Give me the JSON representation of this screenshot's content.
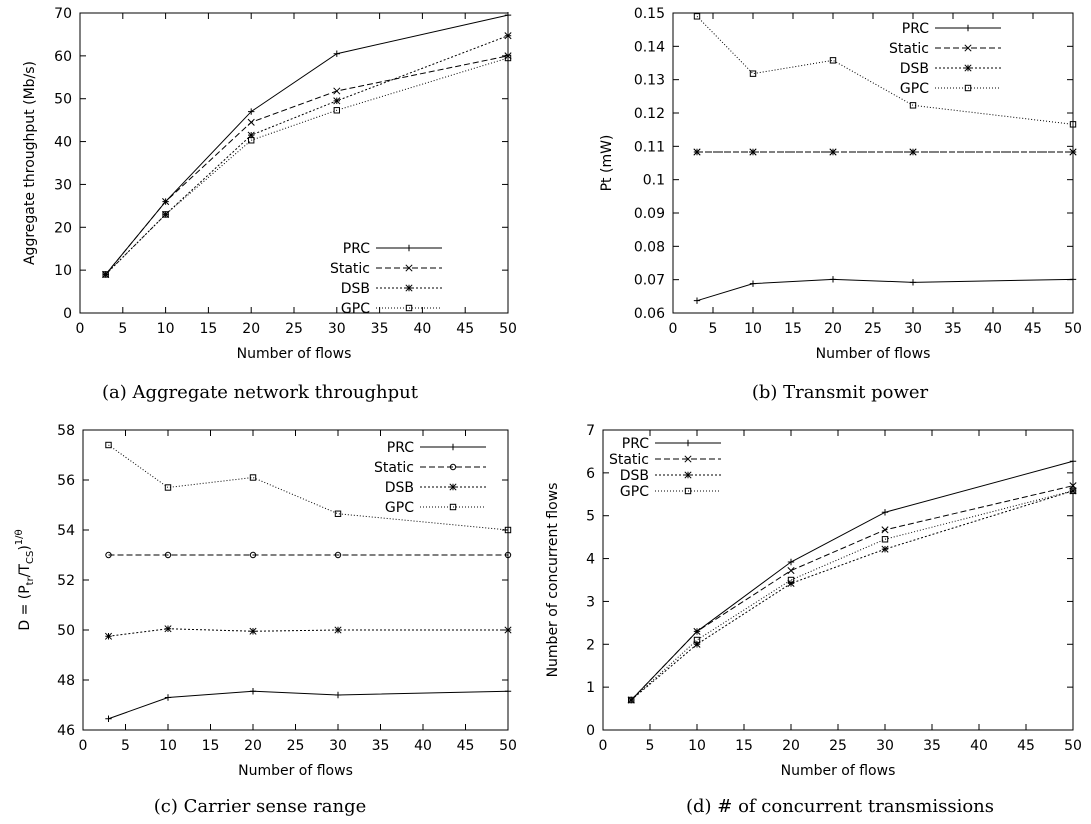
{
  "chart_data": [
    {
      "type": "line",
      "caption": "(a) Aggregate network throughput",
      "xlabel": "Number of flows",
      "ylabel": "Aggregate throughput (Mb/s)",
      "ylabel_parts": [],
      "xlim": [
        0,
        50
      ],
      "ylim": [
        0,
        70
      ],
      "xticks": [
        0,
        5,
        10,
        15,
        20,
        25,
        30,
        35,
        40,
        45,
        50
      ],
      "yticks": [
        0,
        10,
        20,
        30,
        40,
        50,
        60,
        70
      ],
      "ytick_labels": [
        "0",
        "10",
        "20",
        "30",
        "40",
        "50",
        "60",
        "70"
      ],
      "grid": false,
      "legend_position": "bottom-right",
      "x": [
        3,
        10,
        20,
        30,
        50
      ],
      "series": [
        {
          "name": "PRC",
          "values": [
            9,
            26,
            47,
            60.5,
            69.5
          ]
        },
        {
          "name": "Static",
          "values": [
            9,
            26,
            44.5,
            51.8,
            60
          ]
        },
        {
          "name": "DSB",
          "values": [
            9,
            23,
            41.5,
            49.5,
            64.7
          ]
        },
        {
          "name": "GPC",
          "values": [
            9,
            23,
            40.3,
            47.3,
            59.5
          ]
        }
      ]
    },
    {
      "type": "line",
      "caption": "(b) Transmit power",
      "xlabel": "Number of flows",
      "ylabel": "Pt (mW)",
      "ylabel_parts": [],
      "xlim": [
        0,
        50
      ],
      "ylim": [
        0.06,
        0.15
      ],
      "xticks": [
        0,
        5,
        10,
        15,
        20,
        25,
        30,
        35,
        40,
        45,
        50
      ],
      "yticks": [
        0.06,
        0.07,
        0.08,
        0.09,
        0.1,
        0.11,
        0.12,
        0.13,
        0.14,
        0.15
      ],
      "ytick_labels": [
        "0.06",
        "0.07",
        "0.08",
        "0.09",
        "0.1",
        "0.11",
        "0.12",
        "0.13",
        "0.14",
        "0.15"
      ],
      "grid": false,
      "legend_position": "top-right",
      "x": [
        3,
        10,
        20,
        30,
        50
      ],
      "series": [
        {
          "name": "PRC",
          "values": [
            0.0637,
            0.0688,
            0.0701,
            0.0692,
            0.0701
          ]
        },
        {
          "name": "Static",
          "values": [
            0.1083,
            0.1083,
            0.1083,
            0.1083,
            0.1083
          ]
        },
        {
          "name": "DSB",
          "values": [
            0.1083,
            0.1083,
            0.1083,
            0.1083,
            0.1083
          ]
        },
        {
          "name": "GPC",
          "values": [
            0.149,
            0.1318,
            0.1358,
            0.1223,
            0.1166
          ]
        }
      ]
    },
    {
      "type": "line",
      "caption": "(c) Carrier sense range",
      "xlabel": "Number of flows",
      "ylabel": "",
      "ylabel_parts": [
        "D = (P",
        "tr",
        "/T",
        "CS",
        ")",
        "1/θ"
      ],
      "xlim": [
        0,
        50
      ],
      "ylim": [
        46,
        58
      ],
      "xticks": [
        0,
        5,
        10,
        15,
        20,
        25,
        30,
        35,
        40,
        45,
        50
      ],
      "yticks": [
        46,
        48,
        50,
        52,
        54,
        56,
        58
      ],
      "ytick_labels": [
        "46",
        "48",
        "50",
        "52",
        "54",
        "56",
        "58"
      ],
      "grid": false,
      "legend_position": "top-right",
      "x": [
        3,
        10,
        20,
        30,
        50
      ],
      "series": [
        {
          "name": "PRC",
          "values": [
            46.45,
            47.3,
            47.55,
            47.4,
            47.55
          ]
        },
        {
          "name": "Static",
          "values": [
            53,
            53,
            53,
            53,
            53
          ]
        },
        {
          "name": "DSB",
          "values": [
            49.75,
            50.05,
            49.95,
            50,
            50
          ]
        },
        {
          "name": "GPC",
          "values": [
            57.4,
            55.7,
            56.1,
            54.65,
            54
          ]
        }
      ]
    },
    {
      "type": "line",
      "caption": "(d) # of concurrent transmissions",
      "xlabel": "Number of flows",
      "ylabel": "Number of concurrent flows",
      "ylabel_parts": [],
      "xlim": [
        0,
        50
      ],
      "ylim": [
        0,
        7
      ],
      "xticks": [
        0,
        5,
        10,
        15,
        20,
        25,
        30,
        35,
        40,
        45,
        50
      ],
      "yticks": [
        0,
        1,
        2,
        3,
        4,
        5,
        6,
        7
      ],
      "ytick_labels": [
        "0",
        "1",
        "2",
        "3",
        "4",
        "5",
        "6",
        "7"
      ],
      "grid": false,
      "legend_position": "top-left",
      "x": [
        3,
        10,
        20,
        30,
        50
      ],
      "series": [
        {
          "name": "PRC",
          "values": [
            0.7,
            2.3,
            3.92,
            5.08,
            6.27
          ]
        },
        {
          "name": "Static",
          "values": [
            0.7,
            2.3,
            3.72,
            4.67,
            5.7
          ]
        },
        {
          "name": "DSB",
          "values": [
            0.7,
            2.0,
            3.42,
            4.22,
            5.58
          ]
        },
        {
          "name": "GPC",
          "values": [
            0.7,
            2.1,
            3.5,
            4.45,
            5.58
          ]
        }
      ]
    }
  ],
  "series_styles": [
    {
      "name": "PRC",
      "dash": "",
      "marker": "plus",
      "color": "#000000"
    },
    {
      "name": "Static",
      "dash": "6,3",
      "marker": "x",
      "color": "#000000"
    },
    {
      "name": "DSB",
      "dash": "2,2",
      "marker": "star",
      "color": "#000000"
    },
    {
      "name": "GPC",
      "dash": "1,2",
      "marker": "square",
      "color": "#000000"
    }
  ],
  "panel_d_static_marker": "x",
  "panel_c_static_marker": "circle"
}
